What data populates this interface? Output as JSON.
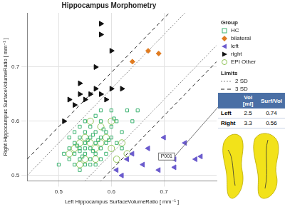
{
  "chart_data": {
    "type": "scatter",
    "title": "Hippocampus Morphometry",
    "x_label": "Left Hippocampus SurfaceVolumeRatio [ mm⁻¹ ]",
    "y_label": "Right Hippocampus SurfaceVolumeRatio [ mm⁻¹ ]",
    "xlim": [
      0.44,
      0.8
    ],
    "ylim": [
      0.49,
      0.8
    ],
    "xticks": [
      0.5,
      0.6,
      0.7
    ],
    "yticks": [
      0.5,
      0.6,
      0.7
    ],
    "grid": true,
    "legend": "right",
    "series_title": "Group",
    "series": [
      {
        "name": "HC",
        "color": "#3cb371",
        "marker": "square-open",
        "x": [
          0.52,
          0.53,
          0.53,
          0.54,
          0.54,
          0.54,
          0.55,
          0.55,
          0.55,
          0.55,
          0.56,
          0.56,
          0.56,
          0.56,
          0.57,
          0.57,
          0.57,
          0.58,
          0.58,
          0.58,
          0.59,
          0.59,
          0.6,
          0.6,
          0.61,
          0.62,
          0.63,
          0.53,
          0.54,
          0.55,
          0.52,
          0.51,
          0.53,
          0.54,
          0.57,
          0.58,
          0.6,
          0.56,
          0.58,
          0.59,
          0.61,
          0.62,
          0.55,
          0.52,
          0.57,
          0.54,
          0.555,
          0.565,
          0.545,
          0.575,
          0.535,
          0.565,
          0.585,
          0.595,
          0.605,
          0.65,
          0.64,
          0.5
        ],
        "values": [
          0.55,
          0.54,
          0.56,
          0.53,
          0.55,
          0.57,
          0.54,
          0.55,
          0.56,
          0.58,
          0.53,
          0.55,
          0.57,
          0.59,
          0.54,
          0.56,
          0.58,
          0.55,
          0.57,
          0.6,
          0.56,
          0.58,
          0.57,
          0.59,
          0.6,
          0.58,
          0.62,
          0.52,
          0.51,
          0.52,
          0.53,
          0.54,
          0.58,
          0.59,
          0.61,
          0.62,
          0.62,
          0.52,
          0.53,
          0.54,
          0.56,
          0.55,
          0.6,
          0.57,
          0.52,
          0.545,
          0.565,
          0.545,
          0.535,
          0.565,
          0.555,
          0.575,
          0.585,
          0.565,
          0.605,
          0.62,
          0.6,
          0.52
        ]
      },
      {
        "name": "bilateral",
        "color": "#e07b20",
        "marker": "diamond",
        "x": [
          0.64,
          0.67,
          0.69
        ],
        "values": [
          0.71,
          0.73,
          0.725
        ]
      },
      {
        "name": "left",
        "color": "#6a5acd",
        "marker": "triangle-left",
        "x": [
          0.61,
          0.62,
          0.63,
          0.64,
          0.66,
          0.67,
          0.7,
          0.72,
          0.72,
          0.74,
          0.76,
          0.77,
          0.69
        ],
        "values": [
          0.51,
          0.5,
          0.53,
          0.54,
          0.52,
          0.55,
          0.57,
          0.53,
          0.515,
          0.56,
          0.53,
          0.535,
          0.51
        ]
      },
      {
        "name": "right",
        "color": "#111111",
        "marker": "triangle-right",
        "x": [
          0.51,
          0.52,
          0.53,
          0.54,
          0.55,
          0.56,
          0.57,
          0.58,
          0.59,
          0.6,
          0.54,
          0.57,
          0.58,
          0.58,
          0.6,
          0.62
        ],
        "values": [
          0.6,
          0.64,
          0.63,
          0.65,
          0.64,
          0.65,
          0.66,
          0.65,
          0.64,
          0.66,
          0.67,
          0.7,
          0.76,
          0.78,
          0.73,
          0.66
        ]
      },
      {
        "name": "EPI Other",
        "color": "#8cc152",
        "marker": "circle-open",
        "x": [
          0.52,
          0.54,
          0.55,
          0.56,
          0.57,
          0.58,
          0.53,
          0.55,
          0.59,
          0.6,
          0.61,
          0.62,
          0.56,
          0.58,
          0.54,
          0.63,
          0.6,
          0.57
        ],
        "values": [
          0.54,
          0.56,
          0.53,
          0.56,
          0.55,
          0.56,
          0.55,
          0.57,
          0.57,
          0.55,
          0.53,
          0.56,
          0.6,
          0.59,
          0.52,
          0.54,
          0.6,
          0.53
        ]
      }
    ],
    "limits_title": "Limits",
    "limits": [
      {
        "name": "2 SD",
        "line_style": "dotted",
        "color": "#888888",
        "offsets": [
          -0.06,
          0.06
        ]
      },
      {
        "name": "3 SD",
        "line_style": "dashed",
        "color": "#222222",
        "offsets": [
          -0.09,
          0.09
        ]
      }
    ],
    "annotations": [
      {
        "text": "P001",
        "x": 0.705,
        "y": 0.535
      }
    ],
    "table": {
      "columns": [
        "Vol [ml]",
        "Surf/Vol"
      ],
      "rows": [
        {
          "label": "Left",
          "values": [
            2.5,
            0.74
          ]
        },
        {
          "label": "Right",
          "values": [
            3.3,
            0.56
          ]
        }
      ]
    }
  }
}
